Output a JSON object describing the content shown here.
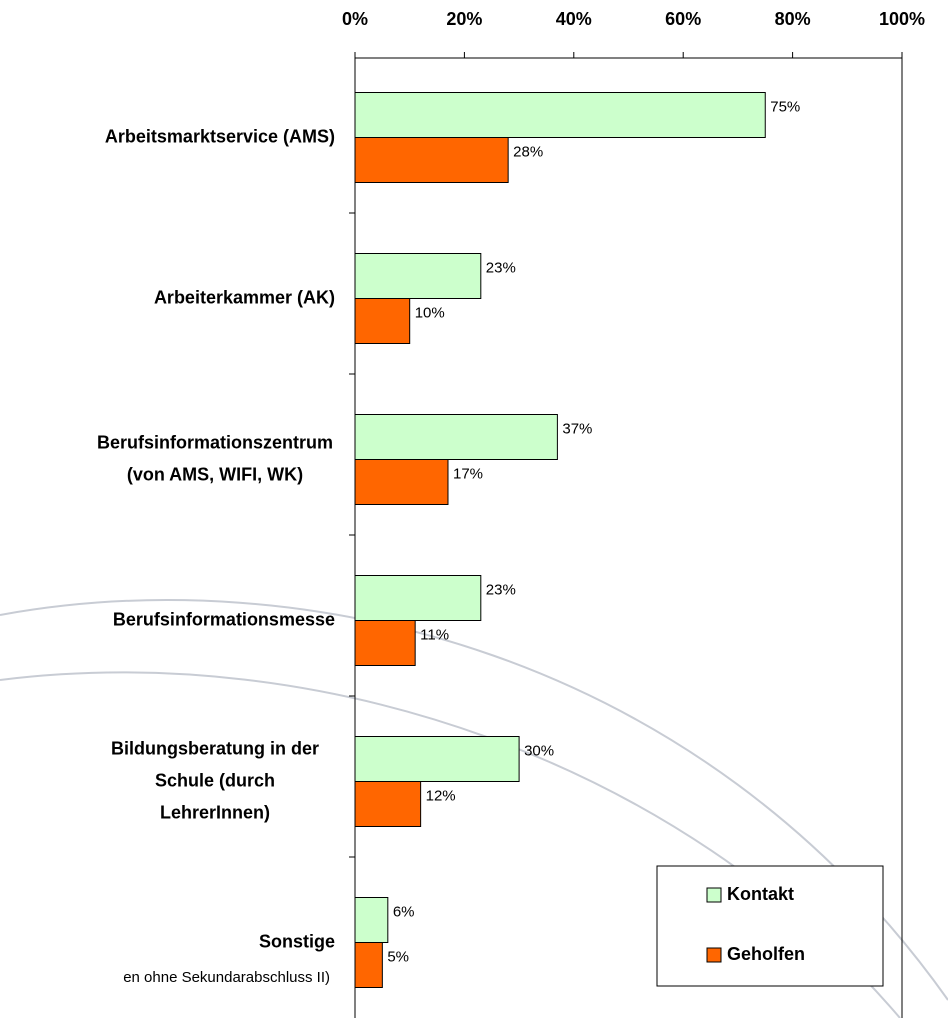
{
  "chart_data": {
    "type": "bar",
    "orientation": "horizontal",
    "categories": [
      "Arbeitsmarktservice (AMS)",
      "Arbeiterkammer (AK)",
      "Berufsinformationszentrum\n(von AMS, WIFI, WK)",
      "Berufsinformationsmesse",
      "Bildungsberatung in der\nSchule (durch\nLehrerInnen)",
      "Sonstige"
    ],
    "series": [
      {
        "name": "Kontakt",
        "color": "#ccffcc",
        "values": [
          75,
          23,
          37,
          23,
          30,
          6
        ],
        "value_labels": [
          "75%",
          "23%",
          "37%",
          "23%",
          "30%",
          "6%"
        ]
      },
      {
        "name": "Geholfen",
        "color": "#ff6600",
        "values": [
          28,
          10,
          17,
          11,
          12,
          5
        ],
        "value_labels": [
          "28%",
          "10%",
          "17%",
          "11%",
          "12%",
          "5%"
        ]
      }
    ],
    "xlim": [
      0,
      100
    ],
    "xticks": [
      {
        "value": 0,
        "label": "0%"
      },
      {
        "value": 20,
        "label": "20%"
      },
      {
        "value": 40,
        "label": "40%"
      },
      {
        "value": 60,
        "label": "60%"
      },
      {
        "value": 80,
        "label": "80%"
      },
      {
        "value": 100,
        "label": "100%"
      }
    ],
    "legend": "bottom-right",
    "note": "en ohne Sekundarabschluss II)"
  }
}
